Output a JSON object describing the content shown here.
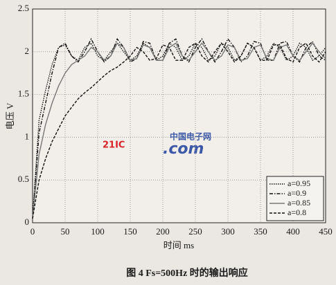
{
  "chart_data": {
    "type": "line",
    "x_label": "时间 ms",
    "y_label": "电压 V",
    "caption": "图 4 Fs=500Hz 时的输出响应",
    "watermark": {
      "logo": "21IC",
      "cn": "中国电子网",
      "dotcom": ".com"
    },
    "xlim": [
      0,
      450
    ],
    "ylim": [
      0,
      2.5
    ],
    "xticks": [
      0,
      50,
      100,
      150,
      200,
      250,
      300,
      350,
      400,
      450
    ],
    "yticks": [
      0,
      0.5,
      1,
      1.5,
      2,
      2.5
    ],
    "grid": true,
    "legend": "lower right",
    "x": [
      0,
      10,
      20,
      30,
      40,
      50,
      60,
      70,
      80,
      90,
      100,
      110,
      120,
      130,
      140,
      150,
      160,
      170,
      180,
      190,
      200,
      210,
      220,
      230,
      240,
      250,
      260,
      270,
      280,
      290,
      300,
      310,
      320,
      330,
      340,
      350,
      360,
      370,
      380,
      390,
      400,
      410,
      420,
      430,
      440,
      450
    ],
    "series": [
      {
        "name": "a=0.95",
        "color": "#111111",
        "dash": "1.5 1.5",
        "values": [
          0.05,
          1.2,
          1.55,
          1.85,
          2.05,
          2.08,
          1.95,
          1.9,
          2.05,
          2.1,
          1.95,
          1.9,
          2.0,
          2.1,
          2.0,
          1.9,
          1.95,
          2.1,
          2.05,
          1.9,
          1.95,
          2.1,
          2.05,
          1.9,
          1.95,
          2.1,
          2.05,
          1.9,
          1.95,
          2.1,
          2.05,
          1.9,
          1.95,
          2.1,
          2.05,
          1.9,
          1.95,
          2.1,
          2.05,
          1.9,
          1.95,
          2.1,
          2.05,
          1.9,
          1.95,
          2.05
        ]
      },
      {
        "name": "a=0.9",
        "color": "#111111",
        "dash": "5 2 1.5 2",
        "values": [
          0.05,
          1.05,
          1.4,
          1.75,
          2.05,
          2.1,
          1.95,
          1.88,
          2.0,
          2.15,
          2.0,
          1.88,
          1.95,
          2.15,
          2.05,
          1.88,
          1.92,
          2.12,
          2.1,
          1.9,
          1.9,
          2.1,
          2.15,
          1.95,
          1.88,
          2.05,
          2.15,
          2.0,
          1.88,
          2.0,
          2.15,
          2.05,
          1.88,
          1.95,
          2.12,
          2.1,
          1.9,
          1.9,
          2.1,
          2.12,
          1.95,
          1.88,
          2.05,
          2.12,
          1.95,
          1.9
        ]
      },
      {
        "name": "a=0.85",
        "color": "#777777",
        "dash": "",
        "values": [
          0.05,
          0.8,
          1.15,
          1.4,
          1.6,
          1.75,
          1.85,
          1.9,
          1.95,
          2.05,
          2.0,
          1.9,
          1.95,
          2.1,
          2.05,
          1.9,
          1.92,
          2.08,
          2.05,
          1.9,
          1.9,
          2.05,
          2.1,
          1.95,
          1.9,
          2.0,
          2.1,
          2.0,
          1.9,
          1.95,
          2.08,
          2.05,
          1.9,
          1.92,
          2.05,
          2.08,
          1.92,
          1.9,
          2.05,
          2.08,
          1.95,
          1.9,
          2.0,
          2.1,
          2.0,
          1.92
        ]
      },
      {
        "name": "a=0.8",
        "color": "#111111",
        "dash": "4 2",
        "values": [
          0.05,
          0.5,
          0.75,
          0.95,
          1.1,
          1.25,
          1.35,
          1.45,
          1.52,
          1.58,
          1.65,
          1.72,
          1.78,
          1.82,
          1.88,
          1.95,
          2.05,
          2.0,
          1.9,
          1.92,
          2.08,
          2.05,
          1.9,
          1.9,
          2.05,
          2.1,
          1.95,
          1.88,
          2.0,
          2.1,
          2.0,
          1.88,
          1.95,
          2.1,
          2.05,
          1.9,
          1.9,
          2.08,
          2.08,
          1.92,
          1.88,
          2.05,
          2.1,
          1.95,
          1.88,
          2.0
        ]
      }
    ]
  }
}
